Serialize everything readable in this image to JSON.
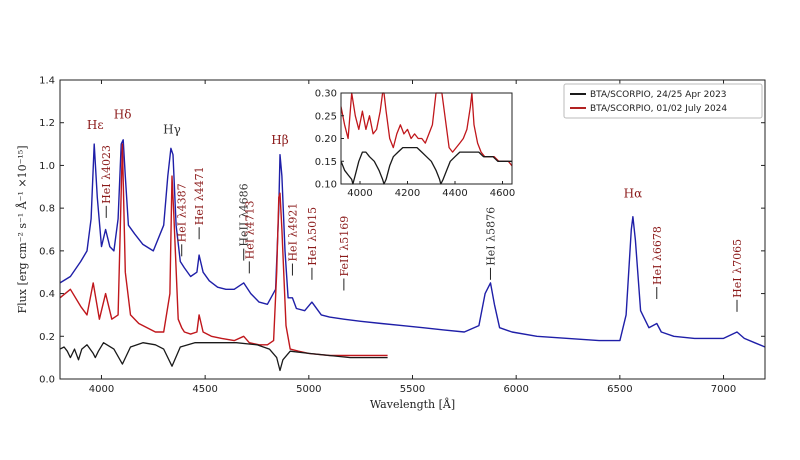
{
  "chart_data": {
    "type": "line",
    "xlabel": "Wavelength [Å]",
    "ylabel": "Flux [erg cm⁻² s⁻¹ Å⁻¹ ×10⁻¹⁵]",
    "xlim": [
      3800,
      7200
    ],
    "ylim": [
      0.0,
      1.4
    ],
    "xticks": [
      4000,
      4500,
      5000,
      5500,
      6000,
      6500,
      7000
    ],
    "yticks": [
      0.0,
      0.2,
      0.4,
      0.6,
      0.8,
      1.0,
      1.2,
      1.4
    ],
    "xtick_labels": [
      "4000",
      "4500",
      "5000",
      "5500",
      "6000",
      "6500",
      "7000"
    ],
    "ytick_labels": [
      "0.0",
      "0.2",
      "0.4",
      "0.6",
      "0.8",
      "1.0",
      "1.2",
      "1.4"
    ],
    "legend": {
      "placement": "top-right",
      "entries": [
        {
          "label": "BTA/SCORPIO, 24/25 Apr 2023",
          "color": "#1a1a1a"
        },
        {
          "label": "BTA/SCORPIO, 01/02 July 2024",
          "color": "#b22222"
        }
      ]
    },
    "series": [
      {
        "color": "#1f1fa8",
        "x": [
          3800,
          3850,
          3900,
          3930,
          3950,
          3965,
          3980,
          4000,
          4020,
          4040,
          4060,
          4080,
          4095,
          4105,
          4115,
          4130,
          4160,
          4200,
          4250,
          4300,
          4320,
          4335,
          4345,
          4360,
          4380,
          4400,
          4430,
          4460,
          4471,
          4490,
          4520,
          4560,
          4600,
          4640,
          4686,
          4720,
          4760,
          4800,
          4840,
          4855,
          4861,
          4870,
          4885,
          4900,
          4921,
          4940,
          4980,
          5015,
          5060,
          5100,
          5169,
          5250,
          5350,
          5450,
          5550,
          5650,
          5750,
          5820,
          5850,
          5876,
          5895,
          5920,
          5980,
          6100,
          6250,
          6400,
          6500,
          6530,
          6555,
          6563,
          6575,
          6600,
          6640,
          6678,
          6700,
          6760,
          6860,
          6960,
          7000,
          7065,
          7100,
          7150,
          7200
        ],
        "y": [
          0.45,
          0.48,
          0.55,
          0.6,
          0.75,
          1.1,
          0.85,
          0.62,
          0.7,
          0.62,
          0.6,
          0.75,
          1.1,
          1.12,
          0.95,
          0.72,
          0.68,
          0.63,
          0.6,
          0.72,
          0.95,
          1.08,
          1.05,
          0.72,
          0.55,
          0.52,
          0.48,
          0.5,
          0.58,
          0.5,
          0.46,
          0.43,
          0.42,
          0.42,
          0.45,
          0.4,
          0.36,
          0.35,
          0.42,
          0.8,
          1.05,
          0.95,
          0.6,
          0.38,
          0.38,
          0.33,
          0.32,
          0.36,
          0.3,
          0.29,
          0.28,
          0.27,
          0.26,
          0.25,
          0.24,
          0.23,
          0.22,
          0.25,
          0.4,
          0.45,
          0.35,
          0.24,
          0.22,
          0.2,
          0.19,
          0.18,
          0.18,
          0.3,
          0.7,
          0.76,
          0.65,
          0.32,
          0.24,
          0.26,
          0.22,
          0.2,
          0.19,
          0.19,
          0.19,
          0.22,
          0.19,
          0.17,
          0.15
        ]
      },
      {
        "color": "#c0171c",
        "x": [
          3800,
          3850,
          3900,
          3930,
          3960,
          3990,
          4020,
          4050,
          4080,
          4101,
          4115,
          4140,
          4180,
          4220,
          4260,
          4300,
          4330,
          4340,
          4350,
          4370,
          4387,
          4400,
          4430,
          4460,
          4471,
          4490,
          4530,
          4580,
          4640,
          4686,
          4713,
          4760,
          4800,
          4830,
          4845,
          4855,
          4861,
          4870,
          4890,
          4910,
          4950,
          5000,
          5100,
          5200,
          5300,
          5380
        ],
        "y": [
          0.38,
          0.42,
          0.34,
          0.3,
          0.45,
          0.28,
          0.4,
          0.28,
          0.3,
          1.1,
          0.5,
          0.3,
          0.26,
          0.24,
          0.22,
          0.22,
          0.4,
          0.95,
          0.75,
          0.28,
          0.24,
          0.22,
          0.21,
          0.22,
          0.3,
          0.22,
          0.2,
          0.19,
          0.18,
          0.2,
          0.17,
          0.16,
          0.16,
          0.18,
          0.5,
          0.85,
          0.87,
          0.7,
          0.25,
          0.14,
          0.13,
          0.12,
          0.11,
          0.11,
          0.11,
          0.11
        ]
      },
      {
        "color": "#1a1a1a",
        "x": [
          3800,
          3820,
          3835,
          3850,
          3870,
          3889,
          3905,
          3930,
          3960,
          3970,
          3985,
          4010,
          4060,
          4101,
          4140,
          4200,
          4260,
          4300,
          4340,
          4380,
          4450,
          4550,
          4650,
          4750,
          4810,
          4845,
          4861,
          4875,
          4910,
          5000,
          5100,
          5200,
          5300,
          5380
        ],
        "y": [
          0.14,
          0.15,
          0.13,
          0.1,
          0.14,
          0.09,
          0.14,
          0.16,
          0.12,
          0.1,
          0.13,
          0.17,
          0.14,
          0.07,
          0.15,
          0.17,
          0.16,
          0.14,
          0.06,
          0.15,
          0.17,
          0.17,
          0.17,
          0.16,
          0.14,
          0.1,
          0.04,
          0.09,
          0.13,
          0.12,
          0.11,
          0.1,
          0.1,
          0.1
        ]
      }
    ],
    "annotations": [
      {
        "text": "Hε",
        "x": 3970,
        "y": 1.17,
        "color": "#8b1a1a",
        "kind": "line-id"
      },
      {
        "text": "Hδ",
        "x": 4102,
        "y": 1.22,
        "color": "#8b1a1a",
        "kind": "line-id"
      },
      {
        "text": "Hγ",
        "x": 4340,
        "y": 1.15,
        "color": "#333333",
        "kind": "line-id"
      },
      {
        "text": "Hβ",
        "x": 4861,
        "y": 1.1,
        "color": "#8b1a1a",
        "kind": "line-id"
      },
      {
        "text": "Hα",
        "x": 6563,
        "y": 0.85,
        "color": "#8b1a1a",
        "kind": "line-id"
      },
      {
        "text": "HeI λ4023",
        "x": 4023,
        "y": 0.82,
        "color": "#8b1a1a",
        "kind": "vertical"
      },
      {
        "text": "HeI λ4387",
        "x": 4387,
        "y": 0.64,
        "color": "#8b1a1a",
        "kind": "vertical"
      },
      {
        "text": "HeI λ4471",
        "x": 4471,
        "y": 0.72,
        "color": "#8b1a1a",
        "kind": "vertical"
      },
      {
        "text": "HeII λ4686",
        "x": 4686,
        "y": 0.62,
        "color": "#333333",
        "kind": "vertical"
      },
      {
        "text": "HeI λ4713",
        "x": 4713,
        "y": 0.56,
        "color": "#8b1a1a",
        "kind": "vertical"
      },
      {
        "text": "HeI λ4921",
        "x": 4921,
        "y": 0.55,
        "color": "#8b1a1a",
        "kind": "vertical"
      },
      {
        "text": "HeI λ5015",
        "x": 5015,
        "y": 0.53,
        "color": "#8b1a1a",
        "kind": "vertical"
      },
      {
        "text": "FeII λ5169",
        "x": 5169,
        "y": 0.48,
        "color": "#8b1a1a",
        "kind": "vertical"
      },
      {
        "text": "HeI λ5876",
        "x": 5876,
        "y": 0.53,
        "color": "#333333",
        "kind": "vertical"
      },
      {
        "text": "HeI λ6678",
        "x": 6678,
        "y": 0.44,
        "color": "#8b1a1a",
        "kind": "vertical"
      },
      {
        "text": "HeI λ7065",
        "x": 7065,
        "y": 0.38,
        "color": "#8b1a1a",
        "kind": "vertical"
      }
    ],
    "inset": {
      "xlim": [
        3920,
        4640
      ],
      "ylim": [
        0.1,
        0.3
      ],
      "xticks": [
        4000,
        4200,
        4400,
        4600
      ],
      "yticks": [
        0.1,
        0.15,
        0.2,
        0.25,
        0.3
      ],
      "xtick_labels": [
        "4000",
        "4200",
        "4400",
        "4600"
      ],
      "ytick_labels": [
        "0.10",
        "0.15",
        "0.20",
        "0.25",
        "0.30"
      ],
      "series": [
        {
          "color": "#c0171c",
          "x": [
            3920,
            3935,
            3950,
            3965,
            3980,
            3995,
            4010,
            4025,
            4040,
            4055,
            4070,
            4085,
            4095,
            4101,
            4110,
            4125,
            4140,
            4155,
            4170,
            4185,
            4200,
            4215,
            4230,
            4245,
            4260,
            4275,
            4290,
            4305,
            4320,
            4335,
            4345,
            4360,
            4375,
            4390,
            4405,
            4420,
            4435,
            4450,
            4465,
            4471,
            4480,
            4495,
            4510,
            4525,
            4545,
            4565,
            4585,
            4605,
            4625,
            4640
          ],
          "y": [
            0.27,
            0.23,
            0.2,
            0.3,
            0.25,
            0.22,
            0.26,
            0.22,
            0.25,
            0.21,
            0.22,
            0.26,
            0.3,
            0.3,
            0.26,
            0.2,
            0.18,
            0.21,
            0.23,
            0.21,
            0.22,
            0.2,
            0.21,
            0.2,
            0.2,
            0.19,
            0.21,
            0.23,
            0.3,
            0.3,
            0.3,
            0.24,
            0.18,
            0.17,
            0.18,
            0.19,
            0.2,
            0.22,
            0.27,
            0.3,
            0.23,
            0.19,
            0.17,
            0.16,
            0.16,
            0.16,
            0.15,
            0.15,
            0.15,
            0.14
          ]
        },
        {
          "color": "#1a1a1a",
          "x": [
            3920,
            3935,
            3950,
            3965,
            3970,
            3980,
            3995,
            4010,
            4025,
            4040,
            4060,
            4080,
            4095,
            4101,
            4110,
            4125,
            4140,
            4160,
            4180,
            4200,
            4220,
            4240,
            4260,
            4280,
            4300,
            4320,
            4335,
            4340,
            4350,
            4365,
            4380,
            4400,
            4420,
            4440,
            4460,
            4480,
            4500,
            4520,
            4540,
            4560,
            4580,
            4600,
            4620,
            4640
          ],
          "y": [
            0.15,
            0.13,
            0.12,
            0.11,
            0.1,
            0.12,
            0.15,
            0.17,
            0.17,
            0.16,
            0.15,
            0.13,
            0.11,
            0.1,
            0.11,
            0.14,
            0.16,
            0.17,
            0.18,
            0.18,
            0.18,
            0.18,
            0.17,
            0.16,
            0.15,
            0.13,
            0.11,
            0.1,
            0.11,
            0.13,
            0.15,
            0.16,
            0.17,
            0.17,
            0.17,
            0.17,
            0.17,
            0.16,
            0.16,
            0.16,
            0.15,
            0.15,
            0.15,
            0.15
          ]
        }
      ]
    }
  }
}
